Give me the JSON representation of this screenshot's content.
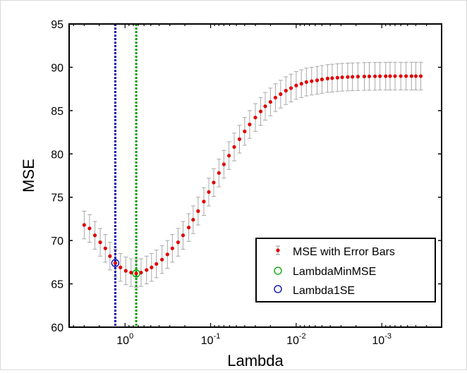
{
  "chart_data": {
    "type": "scatter",
    "xlabel": "Lambda",
    "ylabel": "MSE",
    "xscale": "log",
    "x_reversed": true,
    "xlim": [
      4.5,
      0.0002
    ],
    "ylim": [
      60,
      95
    ],
    "y_ticks": [
      60,
      65,
      70,
      75,
      80,
      85,
      90,
      95
    ],
    "x_ticks": [
      {
        "value": 1,
        "base": "10",
        "exp": "0"
      },
      {
        "value": 0.1,
        "base": "10",
        "exp": "-1"
      },
      {
        "value": 0.01,
        "base": "10",
        "exp": "-2"
      },
      {
        "value": 0.001,
        "base": "10",
        "exp": "-3"
      }
    ],
    "series": [
      {
        "name": "MSE with Error Bars",
        "marker_color": "#e00000",
        "errorbar_color": "#a8a8a8",
        "points": [
          [
            3.0,
            71.8,
            1.6
          ],
          [
            2.6,
            71.4,
            1.6
          ],
          [
            2.25,
            70.6,
            1.6
          ],
          [
            1.95,
            69.8,
            1.6
          ],
          [
            1.7,
            69.1,
            1.6
          ],
          [
            1.5,
            68.2,
            1.6
          ],
          [
            1.3,
            67.4,
            1.6
          ],
          [
            1.13,
            66.9,
            1.6
          ],
          [
            0.98,
            66.5,
            1.6
          ],
          [
            0.85,
            66.3,
            1.6
          ],
          [
            0.74,
            66.2,
            1.6
          ],
          [
            0.65,
            66.3,
            1.6
          ],
          [
            0.56,
            66.6,
            1.6
          ],
          [
            0.49,
            66.9,
            1.6
          ],
          [
            0.43,
            67.3,
            1.6
          ],
          [
            0.37,
            67.8,
            1.6
          ],
          [
            0.32,
            68.4,
            1.6
          ],
          [
            0.28,
            69.1,
            1.6
          ],
          [
            0.24,
            69.8,
            1.6
          ],
          [
            0.21,
            70.6,
            1.6
          ],
          [
            0.18,
            71.5,
            1.6
          ],
          [
            0.16,
            72.4,
            1.6
          ],
          [
            0.14,
            73.4,
            1.6
          ],
          [
            0.12,
            74.5,
            1.6
          ],
          [
            0.105,
            75.6,
            1.6
          ],
          [
            0.092,
            76.7,
            1.6
          ],
          [
            0.08,
            77.8,
            1.6
          ],
          [
            0.07,
            78.8,
            1.6
          ],
          [
            0.061,
            79.8,
            1.6
          ],
          [
            0.053,
            80.8,
            1.6
          ],
          [
            0.046,
            81.7,
            1.6
          ],
          [
            0.04,
            82.6,
            1.6
          ],
          [
            0.035,
            83.4,
            1.6
          ],
          [
            0.03,
            84.2,
            1.6
          ],
          [
            0.026,
            84.9,
            1.6
          ],
          [
            0.023,
            85.5,
            1.6
          ],
          [
            0.02,
            86.0,
            1.6
          ],
          [
            0.0175,
            86.5,
            1.6
          ],
          [
            0.0152,
            86.9,
            1.6
          ],
          [
            0.0132,
            87.3,
            1.6
          ],
          [
            0.0115,
            87.6,
            1.6
          ],
          [
            0.01,
            87.9,
            1.6
          ],
          [
            0.0087,
            88.1,
            1.6
          ],
          [
            0.0076,
            88.3,
            1.6
          ],
          [
            0.0066,
            88.4,
            1.6
          ],
          [
            0.0057,
            88.5,
            1.6
          ],
          [
            0.005,
            88.6,
            1.6
          ],
          [
            0.0043,
            88.7,
            1.6
          ],
          [
            0.0038,
            88.75,
            1.6
          ],
          [
            0.0033,
            88.8,
            1.6
          ],
          [
            0.0029,
            88.85,
            1.6
          ],
          [
            0.0025,
            88.88,
            1.6
          ],
          [
            0.0022,
            88.9,
            1.6
          ],
          [
            0.0019,
            88.92,
            1.6
          ],
          [
            0.0016,
            88.94,
            1.6
          ],
          [
            0.0014,
            88.95,
            1.6
          ],
          [
            0.0012,
            88.96,
            1.6
          ],
          [
            0.00105,
            88.97,
            1.6
          ],
          [
            0.0009,
            88.97,
            1.6
          ],
          [
            0.0008,
            88.98,
            1.6
          ],
          [
            0.0007,
            88.98,
            1.6
          ],
          [
            0.0006,
            88.98,
            1.6
          ],
          [
            0.00052,
            88.98,
            1.6
          ],
          [
            0.00045,
            88.98,
            1.6
          ],
          [
            0.0004,
            88.98,
            1.6
          ],
          [
            0.00035,
            88.98,
            1.6
          ]
        ]
      },
      {
        "name": "LambdaMinMSE",
        "color": "#00a000",
        "x": 0.74,
        "y": 66.2
      },
      {
        "name": "Lambda1SE",
        "color": "#0000b0",
        "x": 1.3,
        "y": 67.4
      }
    ],
    "legend": {
      "placement": "bottom-right",
      "entries": [
        "MSE with Error Bars",
        "LambdaMinMSE",
        "Lambda1SE"
      ]
    },
    "grid": false
  }
}
